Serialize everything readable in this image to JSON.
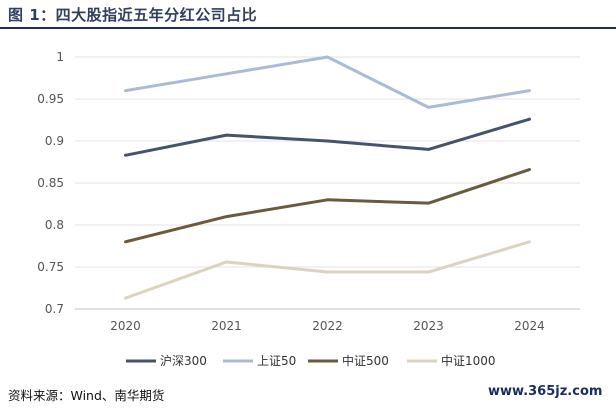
{
  "title": "图 1：四大股指近五年分红公司占比",
  "source": "资料来源：Wind、南华期货",
  "watermark": "www.365jz.com",
  "chart_data": {
    "type": "line",
    "title": "",
    "xlabel": "",
    "ylabel": "",
    "x": [
      "2020",
      "2021",
      "2022",
      "2023",
      "2024"
    ],
    "ylim": [
      0.7,
      1
    ],
    "yticks": [
      "0.7",
      "0.75",
      "0.8",
      "0.85",
      "0.9",
      "0.95",
      "1"
    ],
    "grid": "horizontal",
    "legend": "bottom",
    "series": [
      {
        "name": "沪深300",
        "color": "#44546a",
        "values": [
          0.883,
          0.907,
          0.9,
          0.89,
          0.926
        ]
      },
      {
        "name": "上证50",
        "color": "#a9bcd3",
        "values": [
          0.96,
          0.98,
          1.0,
          0.94,
          0.96
        ]
      },
      {
        "name": "中证500",
        "color": "#6b5a3c",
        "values": [
          0.78,
          0.81,
          0.83,
          0.826,
          0.866
        ]
      },
      {
        "name": "中证1000",
        "color": "#dbd3c0",
        "values": [
          0.713,
          0.756,
          0.744,
          0.744,
          0.78
        ]
      }
    ]
  }
}
